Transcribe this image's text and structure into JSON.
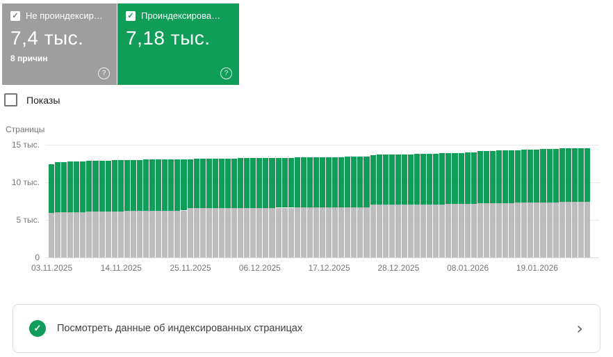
{
  "icons": {
    "help": "?",
    "check": "✓",
    "chevron": "›"
  },
  "cards": {
    "not_indexed": {
      "label": "Не проиндексир…",
      "value": "7,4 тыс.",
      "subtitle": "8 причин",
      "checked": true,
      "color": "#9E9E9E"
    },
    "indexed": {
      "label": "Проиндексирова…",
      "value": "7,18 тыс.",
      "checked": true,
      "color": "#0F9D58"
    }
  },
  "impressions_toggle": {
    "label": "Показы",
    "checked": false
  },
  "chart_data": {
    "type": "bar",
    "stacked": true,
    "title": "",
    "ylabel": "Страницы",
    "units": "thousands of pages",
    "ylim": [
      0,
      15
    ],
    "grid": true,
    "y_ticks": [
      {
        "label": "0",
        "value": 0
      },
      {
        "label": "5 тыс.",
        "value": 5
      },
      {
        "label": "10 тыс.",
        "value": 10
      },
      {
        "label": "15 тыс.",
        "value": 15
      }
    ],
    "x_tick_labels": [
      {
        "label": "03.11.2025",
        "day": 0
      },
      {
        "label": "14.11.2025",
        "day": 11
      },
      {
        "label": "25.11.2025",
        "day": 22
      },
      {
        "label": "06.12.2025",
        "day": 33
      },
      {
        "label": "17.12.2025",
        "day": 44
      },
      {
        "label": "28.12.2025",
        "day": 55
      },
      {
        "label": "08.01.2026",
        "day": 66
      },
      {
        "label": "19.01.2026",
        "day": 77
      }
    ],
    "x_range": [
      "03.11.2025",
      "27.01.2026"
    ],
    "series": [
      {
        "name": "Не проиндексировано",
        "color": "#BDBDBD",
        "values": [
          5.95,
          6.0,
          6.0,
          6.02,
          6.05,
          6.05,
          6.07,
          6.08,
          6.1,
          6.1,
          6.15,
          6.15,
          6.17,
          6.18,
          6.18,
          6.2,
          6.2,
          6.2,
          6.22,
          6.22,
          6.23,
          6.25,
          6.55,
          6.55,
          6.56,
          6.56,
          6.57,
          6.57,
          6.58,
          6.58,
          6.58,
          6.6,
          6.6,
          6.6,
          6.6,
          6.6,
          6.62,
          6.62,
          6.62,
          6.63,
          6.63,
          6.63,
          6.64,
          6.64,
          6.65,
          6.65,
          6.65,
          6.66,
          6.66,
          6.67,
          6.67,
          7.0,
          7.0,
          7.0,
          7.02,
          7.02,
          7.03,
          7.03,
          7.05,
          7.05,
          7.06,
          7.07,
          7.08,
          7.1,
          7.1,
          7.1,
          7.12,
          7.15,
          7.2,
          7.2,
          7.22,
          7.22,
          7.25,
          7.25,
          7.27,
          7.28,
          7.3,
          7.3,
          7.32,
          7.35,
          7.35,
          7.37,
          7.38,
          7.4,
          7.4,
          7.4
        ]
      },
      {
        "name": "Проиндексировано",
        "color": "#0F9D58",
        "values": [
          6.45,
          6.7,
          6.72,
          6.73,
          6.75,
          6.76,
          6.77,
          6.78,
          6.78,
          6.8,
          6.8,
          6.8,
          6.8,
          6.8,
          6.82,
          6.82,
          6.82,
          6.83,
          6.83,
          6.84,
          6.85,
          6.85,
          6.55,
          6.57,
          6.57,
          6.58,
          6.58,
          6.6,
          6.6,
          6.6,
          6.62,
          6.62,
          6.62,
          6.63,
          6.63,
          6.65,
          6.65,
          6.65,
          6.66,
          6.66,
          6.67,
          6.68,
          6.68,
          6.7,
          6.7,
          6.7,
          6.72,
          6.72,
          6.73,
          6.73,
          6.75,
          6.65,
          6.66,
          6.68,
          6.68,
          6.7,
          6.7,
          6.72,
          6.72,
          6.73,
          6.75,
          6.75,
          6.77,
          6.78,
          6.8,
          6.82,
          6.83,
          6.85,
          6.95,
          6.97,
          6.98,
          7.0,
          7.0,
          7.02,
          7.03,
          7.05,
          7.05,
          7.07,
          7.1,
          7.1,
          7.12,
          7.13,
          7.15,
          7.15,
          7.17,
          7.18
        ]
      }
    ]
  },
  "footer_link": {
    "text": "Посмотреть данные об индексированных страницах"
  }
}
